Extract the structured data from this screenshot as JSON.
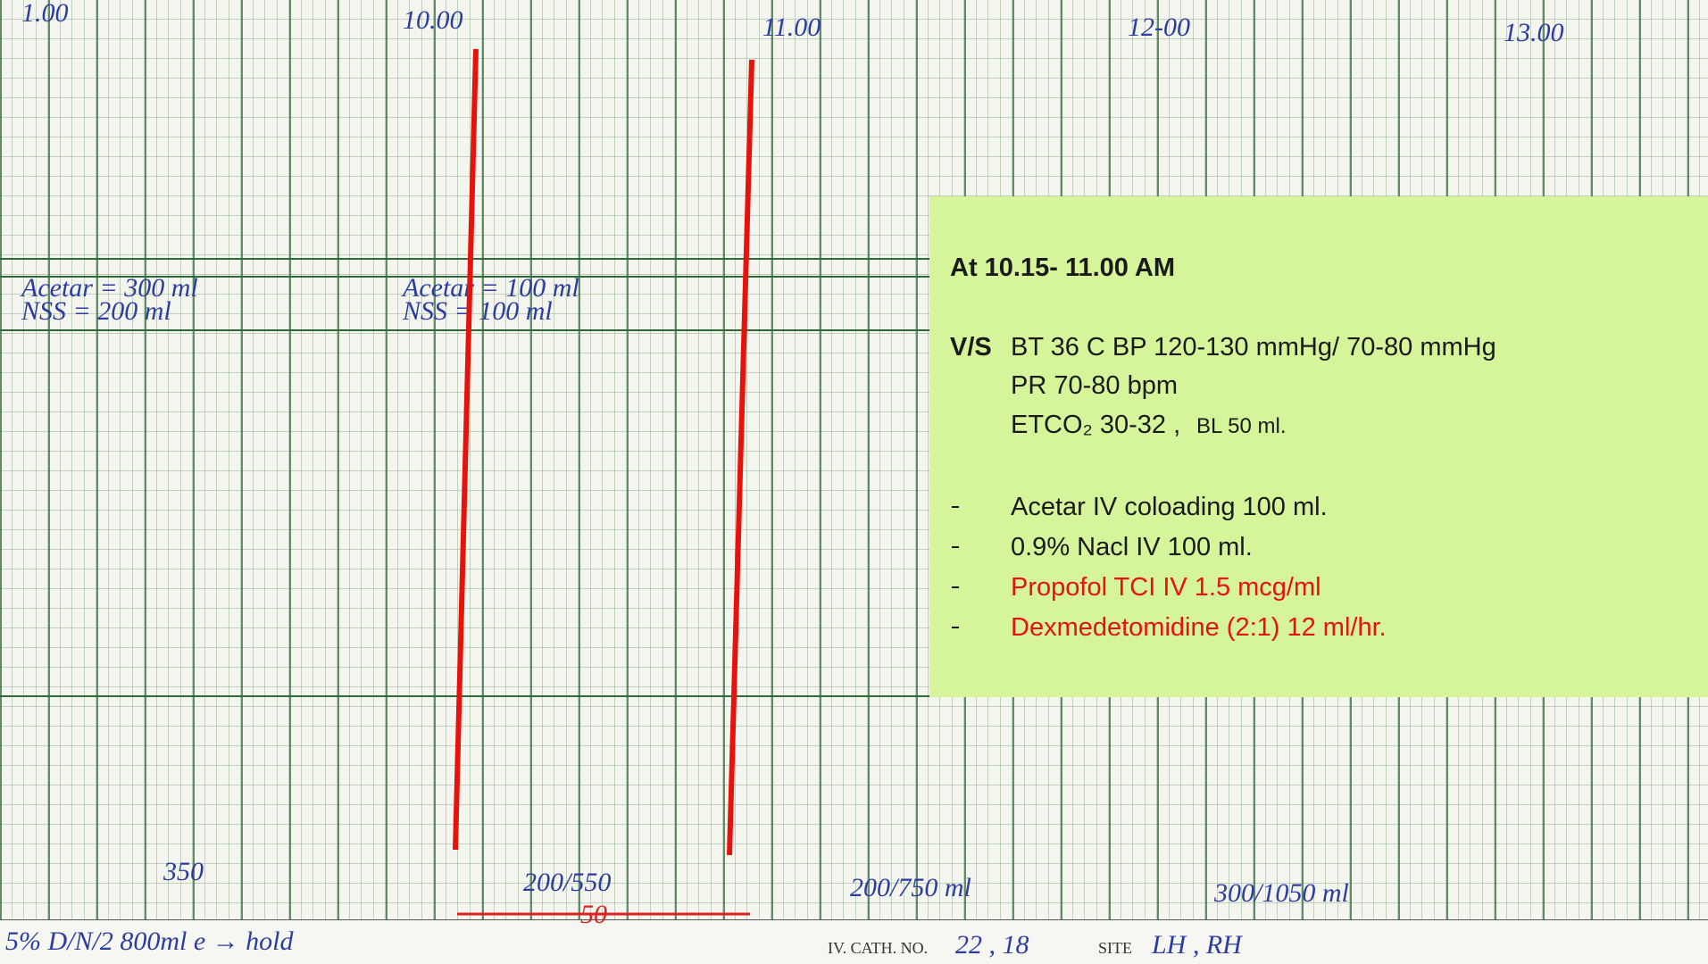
{
  "chart_paper": {
    "time_labels": [
      "1.00",
      "10.00",
      "11.00",
      "12-00",
      "13.00"
    ],
    "fluids_left": [
      "Acetar = 300 ml",
      "NSS = 200 ml"
    ],
    "fluids_mid": [
      "Acetar = 100 ml",
      "NSS = 100 ml"
    ],
    "totals": [
      "350",
      "200/550",
      "200/750 ml",
      "300/1050 ml"
    ],
    "interval": "50",
    "bottom_note": "5% D/N/2 800ml e → hold",
    "cath_label": "IV. CATH. NO.",
    "cath_value": "22 , 18",
    "site_label": "SITE",
    "site_value": "LH , RH"
  },
  "note": {
    "heading": "At 10.15- 11.00 AM",
    "vs_label": "V/S",
    "vs_line": "BT 36 C BP 120-130 mmHg/ 70-80 mmHg",
    "pr_line": "PR 70-80 bpm",
    "etco_line": "ETCO₂ 30-32 ,",
    "bl_line": "BL 50 ml.",
    "items": [
      {
        "text": "Acetar IV coloading 100 ml.",
        "color": "#1a1a1a"
      },
      {
        "text": "0.9% Nacl IV 100 ml.",
        "color": "#1a1a1a"
      },
      {
        "text": "Propofol TCI IV 1.5 mcg/ml",
        "color": "#e8120c"
      },
      {
        "text": "Dexmedetomidine (2:1)  12 ml/hr.",
        "color": "#e8120c"
      }
    ]
  }
}
